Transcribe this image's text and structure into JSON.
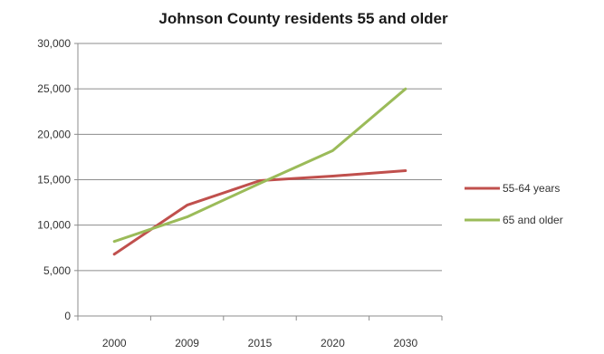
{
  "chart_data": {
    "type": "line",
    "title": "Johnson County residents 55 and older",
    "xlabel": "",
    "ylabel": "",
    "categories": [
      "2000",
      "2009",
      "2015",
      "2020",
      "2030"
    ],
    "y_ticks": [
      "0",
      "5,000",
      "10,000",
      "15,000",
      "20,000",
      "25,000",
      "30,000"
    ],
    "ylim": [
      0,
      30000
    ],
    "grid": "horizontal",
    "legend_position": "right",
    "series": [
      {
        "name": "55-64 years",
        "color": "#c0504d",
        "values": [
          6800,
          12200,
          14900,
          15400,
          16000
        ]
      },
      {
        "name": "65 and older",
        "color": "#9bbb59",
        "values": [
          8200,
          10900,
          14600,
          18200,
          25000
        ]
      }
    ]
  }
}
